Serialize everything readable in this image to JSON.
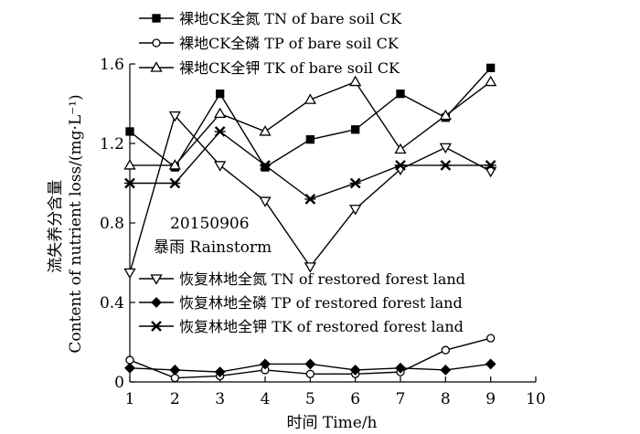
{
  "chart_data": {
    "type": "line",
    "xlabel": "时间 Time/h",
    "ylabel_cn": "流失养分含量",
    "ylabel_en": "Content of nutrient loss/(mg·L⁻¹)",
    "xlim": [
      1,
      10
    ],
    "ylim": [
      0,
      1.6
    ],
    "x_ticks": [
      "1",
      "2",
      "3",
      "4",
      "5",
      "6",
      "7",
      "8",
      "9",
      "10"
    ],
    "y_ticks": [
      "0",
      "0.4",
      "0.8",
      "1.2",
      "1.6"
    ],
    "grid": false,
    "legend_top": "top-center",
    "legend_bottom": "bottom-center",
    "annotation": [
      "20150906",
      "暴雨 Rainstorm"
    ],
    "x": [
      1,
      2,
      3,
      4,
      5,
      6,
      7,
      8,
      9
    ],
    "series": [
      {
        "name": "裸地CK全氮 TN of bare soil CK",
        "marker": "square-filled",
        "group": "top",
        "values": [
          1.26,
          1.08,
          1.45,
          1.08,
          1.22,
          1.27,
          1.45,
          1.33,
          1.58
        ]
      },
      {
        "name": "裸地CK全磷 TP of  bare soil CK",
        "marker": "circle-open",
        "group": "top",
        "values": [
          0.11,
          0.02,
          0.03,
          0.06,
          0.04,
          0.04,
          0.05,
          0.16,
          0.22
        ]
      },
      {
        "name": "裸地CK全钾 TK of bare soil CK",
        "marker": "triangle-up-open",
        "group": "top",
        "values": [
          1.09,
          1.09,
          1.35,
          1.26,
          1.42,
          1.51,
          1.17,
          1.34,
          1.51
        ]
      },
      {
        "name": "恢复林地全氮 TN of restored forest land",
        "marker": "triangle-down-open",
        "group": "bottom",
        "values": [
          0.55,
          1.34,
          1.09,
          0.91,
          0.58,
          0.87,
          1.07,
          1.18,
          1.06
        ]
      },
      {
        "name": "恢复林地全磷 TP of restored forest land",
        "marker": "diamond-filled",
        "group": "bottom",
        "values": [
          0.07,
          0.06,
          0.05,
          0.09,
          0.09,
          0.06,
          0.07,
          0.06,
          0.09
        ]
      },
      {
        "name": "恢复林地全钾 TK of restored forest land",
        "marker": "x-star",
        "group": "bottom",
        "values": [
          1.0,
          1.0,
          1.26,
          1.09,
          0.92,
          1.0,
          1.09,
          1.09,
          1.09
        ]
      }
    ]
  }
}
